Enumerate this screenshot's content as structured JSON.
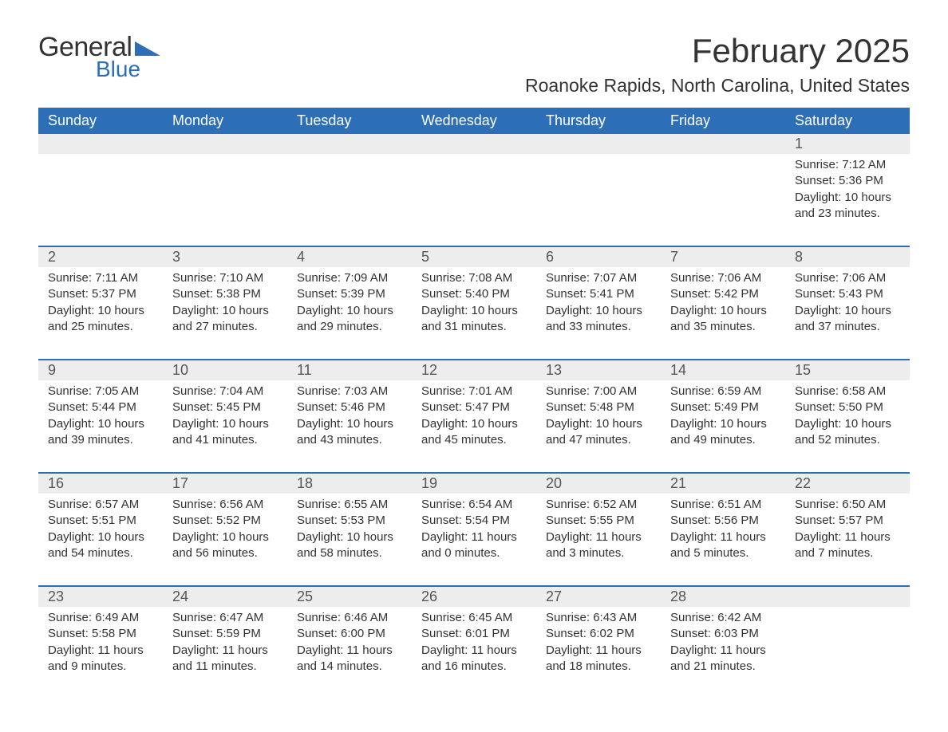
{
  "logo": {
    "text1": "General",
    "text2": "Blue"
  },
  "title": "February 2025",
  "location": "Roanoke Rapids, North Carolina, United States",
  "colors": {
    "header_bg": "#2d6fb7",
    "header_text": "#ffffff",
    "date_bg": "#ededed",
    "text": "#333333",
    "rule": "#2d6fb7"
  },
  "day_names": [
    "Sunday",
    "Monday",
    "Tuesday",
    "Wednesday",
    "Thursday",
    "Friday",
    "Saturday"
  ],
  "weeks": [
    {
      "days": [
        {
          "date": "",
          "sunrise": "",
          "sunset": "",
          "daylight": ""
        },
        {
          "date": "",
          "sunrise": "",
          "sunset": "",
          "daylight": ""
        },
        {
          "date": "",
          "sunrise": "",
          "sunset": "",
          "daylight": ""
        },
        {
          "date": "",
          "sunrise": "",
          "sunset": "",
          "daylight": ""
        },
        {
          "date": "",
          "sunrise": "",
          "sunset": "",
          "daylight": ""
        },
        {
          "date": "",
          "sunrise": "",
          "sunset": "",
          "daylight": ""
        },
        {
          "date": "1",
          "sunrise": "Sunrise: 7:12 AM",
          "sunset": "Sunset: 5:36 PM",
          "daylight": "Daylight: 10 hours and 23 minutes."
        }
      ]
    },
    {
      "days": [
        {
          "date": "2",
          "sunrise": "Sunrise: 7:11 AM",
          "sunset": "Sunset: 5:37 PM",
          "daylight": "Daylight: 10 hours and 25 minutes."
        },
        {
          "date": "3",
          "sunrise": "Sunrise: 7:10 AM",
          "sunset": "Sunset: 5:38 PM",
          "daylight": "Daylight: 10 hours and 27 minutes."
        },
        {
          "date": "4",
          "sunrise": "Sunrise: 7:09 AM",
          "sunset": "Sunset: 5:39 PM",
          "daylight": "Daylight: 10 hours and 29 minutes."
        },
        {
          "date": "5",
          "sunrise": "Sunrise: 7:08 AM",
          "sunset": "Sunset: 5:40 PM",
          "daylight": "Daylight: 10 hours and 31 minutes."
        },
        {
          "date": "6",
          "sunrise": "Sunrise: 7:07 AM",
          "sunset": "Sunset: 5:41 PM",
          "daylight": "Daylight: 10 hours and 33 minutes."
        },
        {
          "date": "7",
          "sunrise": "Sunrise: 7:06 AM",
          "sunset": "Sunset: 5:42 PM",
          "daylight": "Daylight: 10 hours and 35 minutes."
        },
        {
          "date": "8",
          "sunrise": "Sunrise: 7:06 AM",
          "sunset": "Sunset: 5:43 PM",
          "daylight": "Daylight: 10 hours and 37 minutes."
        }
      ]
    },
    {
      "days": [
        {
          "date": "9",
          "sunrise": "Sunrise: 7:05 AM",
          "sunset": "Sunset: 5:44 PM",
          "daylight": "Daylight: 10 hours and 39 minutes."
        },
        {
          "date": "10",
          "sunrise": "Sunrise: 7:04 AM",
          "sunset": "Sunset: 5:45 PM",
          "daylight": "Daylight: 10 hours and 41 minutes."
        },
        {
          "date": "11",
          "sunrise": "Sunrise: 7:03 AM",
          "sunset": "Sunset: 5:46 PM",
          "daylight": "Daylight: 10 hours and 43 minutes."
        },
        {
          "date": "12",
          "sunrise": "Sunrise: 7:01 AM",
          "sunset": "Sunset: 5:47 PM",
          "daylight": "Daylight: 10 hours and 45 minutes."
        },
        {
          "date": "13",
          "sunrise": "Sunrise: 7:00 AM",
          "sunset": "Sunset: 5:48 PM",
          "daylight": "Daylight: 10 hours and 47 minutes."
        },
        {
          "date": "14",
          "sunrise": "Sunrise: 6:59 AM",
          "sunset": "Sunset: 5:49 PM",
          "daylight": "Daylight: 10 hours and 49 minutes."
        },
        {
          "date": "15",
          "sunrise": "Sunrise: 6:58 AM",
          "sunset": "Sunset: 5:50 PM",
          "daylight": "Daylight: 10 hours and 52 minutes."
        }
      ]
    },
    {
      "days": [
        {
          "date": "16",
          "sunrise": "Sunrise: 6:57 AM",
          "sunset": "Sunset: 5:51 PM",
          "daylight": "Daylight: 10 hours and 54 minutes."
        },
        {
          "date": "17",
          "sunrise": "Sunrise: 6:56 AM",
          "sunset": "Sunset: 5:52 PM",
          "daylight": "Daylight: 10 hours and 56 minutes."
        },
        {
          "date": "18",
          "sunrise": "Sunrise: 6:55 AM",
          "sunset": "Sunset: 5:53 PM",
          "daylight": "Daylight: 10 hours and 58 minutes."
        },
        {
          "date": "19",
          "sunrise": "Sunrise: 6:54 AM",
          "sunset": "Sunset: 5:54 PM",
          "daylight": "Daylight: 11 hours and 0 minutes."
        },
        {
          "date": "20",
          "sunrise": "Sunrise: 6:52 AM",
          "sunset": "Sunset: 5:55 PM",
          "daylight": "Daylight: 11 hours and 3 minutes."
        },
        {
          "date": "21",
          "sunrise": "Sunrise: 6:51 AM",
          "sunset": "Sunset: 5:56 PM",
          "daylight": "Daylight: 11 hours and 5 minutes."
        },
        {
          "date": "22",
          "sunrise": "Sunrise: 6:50 AM",
          "sunset": "Sunset: 5:57 PM",
          "daylight": "Daylight: 11 hours and 7 minutes."
        }
      ]
    },
    {
      "days": [
        {
          "date": "23",
          "sunrise": "Sunrise: 6:49 AM",
          "sunset": "Sunset: 5:58 PM",
          "daylight": "Daylight: 11 hours and 9 minutes."
        },
        {
          "date": "24",
          "sunrise": "Sunrise: 6:47 AM",
          "sunset": "Sunset: 5:59 PM",
          "daylight": "Daylight: 11 hours and 11 minutes."
        },
        {
          "date": "25",
          "sunrise": "Sunrise: 6:46 AM",
          "sunset": "Sunset: 6:00 PM",
          "daylight": "Daylight: 11 hours and 14 minutes."
        },
        {
          "date": "26",
          "sunrise": "Sunrise: 6:45 AM",
          "sunset": "Sunset: 6:01 PM",
          "daylight": "Daylight: 11 hours and 16 minutes."
        },
        {
          "date": "27",
          "sunrise": "Sunrise: 6:43 AM",
          "sunset": "Sunset: 6:02 PM",
          "daylight": "Daylight: 11 hours and 18 minutes."
        },
        {
          "date": "28",
          "sunrise": "Sunrise: 6:42 AM",
          "sunset": "Sunset: 6:03 PM",
          "daylight": "Daylight: 11 hours and 21 minutes."
        },
        {
          "date": "",
          "sunrise": "",
          "sunset": "",
          "daylight": ""
        }
      ]
    }
  ]
}
